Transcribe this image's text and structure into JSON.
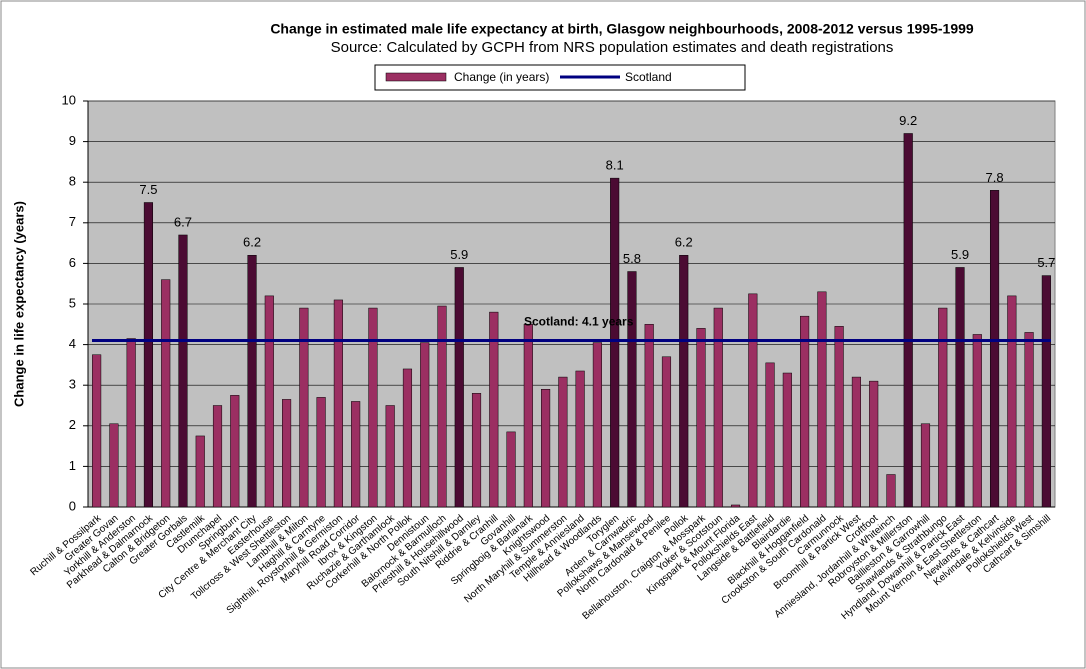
{
  "chart_data": {
    "type": "bar",
    "title": "Change in estimated male life expectancy at birth, Glasgow neighbourhoods,  2008-2012 versus 1995-1999",
    "subtitle": "Source: Calculated by GCPH from NRS population estimates and death registrations",
    "y_label": "Change in life expectancy (years)",
    "categories": [
      "Ruchill & Possilpark",
      "Greater Govan",
      "Yorkhill & Anderston",
      "Parkhead & Dalmarnock",
      "Calton & Bridgeton",
      "Greater Gorbals",
      "Castlemilk",
      "Drumchapel",
      "Springburn",
      "City Centre & Merchant City",
      "Easterhouse",
      "Tollcross & West Shettleston",
      "Lambhill & Milton",
      "Haghill & Carntyne",
      "Sighthill, Roystonhill & Germiston",
      "Maryhill Road Corridor",
      "Ibrox & Kingston",
      "Ruchazie & Garthamlock",
      "Corkerhill & North Pollok",
      "Dennistoun",
      "Balornock & Barmulloch",
      "Priesthill & Househillwood",
      "South Nitshill & Darnley",
      "Riddrie & Cranhill",
      "Govanhill",
      "Springboig & Barlanark",
      "Knightswood",
      "North Maryhill & Summerston",
      "Temple & Anniesland",
      "Hillhead & Woodlands",
      "Toryglen",
      "Arden & Carnwadric",
      "Pollokshaws & Mansewood",
      "North Cardonald & Penilee",
      "Pollok",
      "Bellahouston, Craigton & Mosspark",
      "Yoker & Scotstoun",
      "Kingspark & Mount Florida",
      "Pollokshields East",
      "Langside & Battlefield",
      "Blairdardie",
      "Blackhill & Hogganfield",
      "Crookston & South Cardonald",
      "Carmunnock",
      "Broomhill & Partick West",
      "Croftfoot",
      "Anniesland, Jordanhill & Whiteinch",
      "Robroyston & Millerston",
      "Baillieston & Garrowhill",
      "Shawlands & Strathbungo",
      "Hyndland, Dowanhill & Partick East",
      "Mount Vernon & East Shettleston",
      "Newlands & Cathcart",
      "Kelvindale & Kelvinside",
      "Pollokshields West",
      "Cathcart & Simshill"
    ],
    "series": [
      {
        "name": "Change (in years)",
        "color": "#9b2f62",
        "highlight_color": "#4b0b33",
        "values": [
          3.75,
          2.05,
          4.15,
          7.5,
          5.6,
          6.7,
          1.75,
          2.5,
          2.75,
          6.2,
          5.2,
          2.65,
          4.9,
          2.7,
          5.1,
          2.6,
          4.9,
          2.5,
          3.4,
          4.05,
          4.95,
          5.9,
          2.8,
          4.8,
          1.85,
          4.5,
          2.9,
          3.2,
          3.35,
          4.05,
          8.1,
          5.8,
          4.5,
          3.7,
          6.2,
          4.4,
          4.9,
          0.05,
          5.25,
          3.55,
          3.3,
          4.7,
          5.3,
          4.45,
          3.2,
          3.1,
          0.8,
          9.2,
          2.05,
          4.9,
          5.9,
          4.25,
          7.8,
          5.2,
          4.3,
          5.7
        ],
        "value_labels": [
          null,
          null,
          null,
          "7.5",
          null,
          "6.7",
          null,
          null,
          null,
          "6.2",
          null,
          null,
          null,
          null,
          null,
          null,
          null,
          null,
          null,
          null,
          null,
          "5.9",
          null,
          null,
          null,
          null,
          null,
          null,
          null,
          null,
          "8.1",
          "5.8",
          null,
          null,
          "6.2",
          null,
          null,
          null,
          null,
          null,
          null,
          null,
          null,
          null,
          null,
          null,
          null,
          "9.2",
          null,
          null,
          "5.9",
          null,
          "7.8",
          null,
          null,
          "5.7"
        ]
      }
    ],
    "reference": {
      "name": "Scotland",
      "value": 4.1,
      "color": "#000080",
      "annotation": "Scotland: 4.1 years"
    },
    "ylim": [
      0,
      10
    ],
    "yticks": [
      0,
      1,
      2,
      3,
      4,
      5,
      6,
      7,
      8,
      9,
      10
    ],
    "grid": true,
    "plot_background": "#c0c0c0",
    "legend": "top"
  }
}
